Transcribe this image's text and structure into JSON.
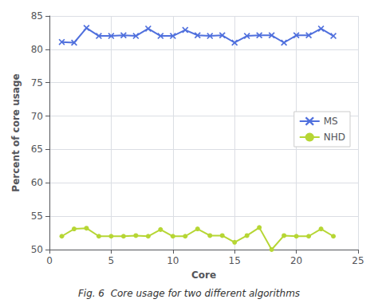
{
  "chart_data": {
    "type": "line",
    "caption": "Fig. 6  Core usage for two different algorithms",
    "x_label": "Core",
    "y_label": "Percent of core usage",
    "series": [
      {
        "name": "MS",
        "marker": "x",
        "x": [
          1,
          2,
          3,
          4,
          5,
          6,
          7,
          8,
          9,
          10,
          11,
          12,
          13,
          14,
          15,
          16,
          17,
          18,
          19,
          20,
          21,
          22,
          23
        ],
        "values": [
          81.1,
          81.0,
          83.2,
          82.0,
          82.0,
          82.1,
          82.0,
          83.1,
          82.0,
          82.0,
          82.9,
          82.1,
          82.0,
          82.1,
          81.0,
          82.0,
          82.1,
          82.1,
          81.0,
          82.1,
          82.1,
          83.1,
          82.0
        ]
      },
      {
        "name": "NHD",
        "marker": "circle",
        "x": [
          1,
          2,
          3,
          4,
          5,
          6,
          7,
          8,
          9,
          10,
          11,
          12,
          13,
          14,
          15,
          16,
          17,
          18,
          19,
          20,
          21,
          22,
          23
        ],
        "values": [
          52.0,
          53.1,
          53.2,
          52.0,
          52.0,
          52.0,
          52.1,
          52.0,
          53.0,
          52.0,
          52.0,
          53.1,
          52.1,
          52.1,
          51.1,
          52.1,
          53.3,
          50.0,
          52.1,
          52.0,
          52.0,
          53.1,
          52.0
        ]
      }
    ],
    "xlim": [
      0,
      25
    ],
    "xticks": [
      0,
      5,
      10,
      15,
      20,
      25
    ],
    "ylim": [
      50,
      85
    ],
    "yticks": [
      50,
      55,
      60,
      65,
      70,
      75,
      80,
      85
    ],
    "grid": true,
    "legend": "right"
  }
}
